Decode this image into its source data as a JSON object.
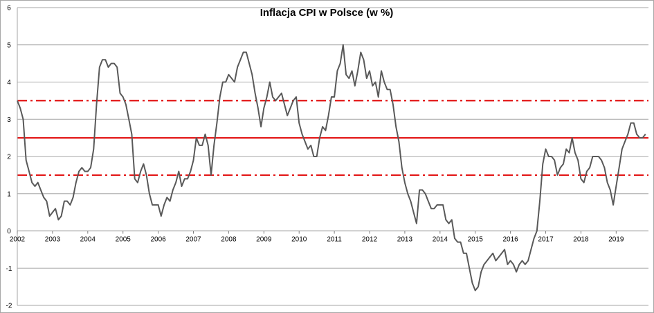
{
  "chart_data": {
    "type": "line",
    "title": "Inflacja CPI w Polsce (w %)",
    "xlabel": "",
    "ylabel": "",
    "xlim": [
      2002,
      2019.917
    ],
    "ylim": [
      -2,
      6
    ],
    "x_ticks": [
      "2002",
      "2003",
      "2004",
      "2005",
      "2006",
      "2007",
      "2008",
      "2009",
      "2010",
      "2011",
      "2012",
      "2013",
      "2014",
      "2015",
      "2016",
      "2017",
      "2018",
      "2019"
    ],
    "y_ticks": [
      "-2",
      "-1",
      "0",
      "1",
      "2",
      "3",
      "4",
      "5",
      "6"
    ],
    "grid": "horizontal",
    "reference_lines": [
      {
        "value": 2.5,
        "style": "solid",
        "color": "#e00000"
      },
      {
        "value": 3.5,
        "style": "dash-dot",
        "color": "#e00000"
      },
      {
        "value": 1.5,
        "style": "dash-dot",
        "color": "#e00000"
      }
    ],
    "series": [
      {
        "color": "#595959",
        "x_start": 2002.0,
        "x_step_months": 1,
        "values": [
          3.5,
          3.3,
          3.0,
          1.9,
          1.6,
          1.3,
          1.2,
          1.3,
          1.1,
          0.9,
          0.8,
          0.4,
          0.5,
          0.6,
          0.3,
          0.4,
          0.8,
          0.8,
          0.7,
          0.9,
          1.3,
          1.6,
          1.7,
          1.6,
          1.6,
          1.7,
          2.2,
          3.4,
          4.4,
          4.6,
          4.6,
          4.4,
          4.5,
          4.5,
          4.4,
          3.7,
          3.6,
          3.4,
          3.0,
          2.6,
          1.4,
          1.3,
          1.6,
          1.8,
          1.5,
          1.0,
          0.7,
          0.7,
          0.7,
          0.4,
          0.7,
          0.9,
          0.8,
          1.1,
          1.3,
          1.6,
          1.2,
          1.4,
          1.4,
          1.6,
          1.9,
          2.5,
          2.3,
          2.3,
          2.6,
          2.3,
          1.5,
          2.3,
          2.9,
          3.6,
          4.0,
          4.0,
          4.2,
          4.1,
          4.0,
          4.4,
          4.6,
          4.8,
          4.8,
          4.5,
          4.2,
          3.7,
          3.3,
          2.8,
          3.3,
          3.6,
          4.0,
          3.6,
          3.5,
          3.6,
          3.7,
          3.4,
          3.1,
          3.3,
          3.5,
          3.6,
          2.9,
          2.6,
          2.4,
          2.2,
          2.3,
          2.0,
          2.0,
          2.5,
          2.8,
          2.7,
          3.1,
          3.6,
          3.6,
          4.3,
          4.5,
          5.0,
          4.2,
          4.1,
          4.3,
          3.9,
          4.3,
          4.8,
          4.6,
          4.1,
          4.3,
          3.9,
          4.0,
          3.6,
          4.3,
          4.0,
          3.8,
          3.8,
          3.4,
          2.8,
          2.4,
          1.7,
          1.3,
          1.0,
          0.8,
          0.5,
          0.2,
          1.1,
          1.1,
          1.0,
          0.8,
          0.6,
          0.6,
          0.7,
          0.7,
          0.7,
          0.3,
          0.2,
          0.3,
          -0.2,
          -0.3,
          -0.3,
          -0.6,
          -0.6,
          -1.0,
          -1.4,
          -1.6,
          -1.5,
          -1.1,
          -0.9,
          -0.8,
          -0.7,
          -0.6,
          -0.8,
          -0.7,
          -0.6,
          -0.5,
          -0.9,
          -0.8,
          -0.9,
          -1.1,
          -0.9,
          -0.8,
          -0.9,
          -0.8,
          -0.5,
          -0.2,
          0.0,
          0.8,
          1.8,
          2.2,
          2.0,
          2.0,
          1.9,
          1.5,
          1.7,
          1.8,
          2.2,
          2.1,
          2.5,
          2.1,
          1.9,
          1.4,
          1.3,
          1.6,
          1.7,
          2.0,
          2.0,
          2.0,
          1.9,
          1.7,
          1.3,
          1.1,
          0.7,
          1.2,
          1.7,
          2.2,
          2.4,
          2.6,
          2.9,
          2.9,
          2.6,
          2.5,
          2.5,
          2.6
        ]
      }
    ]
  }
}
